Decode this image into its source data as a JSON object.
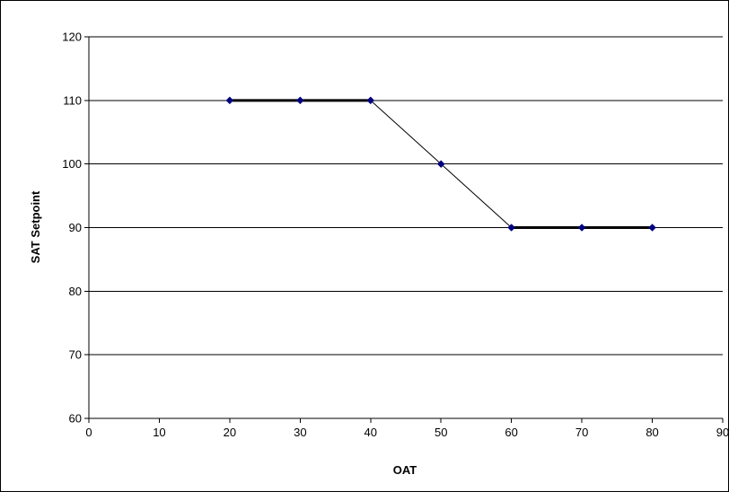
{
  "chart_data": {
    "type": "scatter",
    "title": "",
    "xlabel": "OAT",
    "ylabel": "SAT Setpoint",
    "xlim": [
      0,
      90
    ],
    "ylim": [
      60,
      120
    ],
    "xticks": [
      0,
      10,
      20,
      30,
      40,
      50,
      60,
      70,
      80,
      90
    ],
    "yticks": [
      60,
      70,
      80,
      90,
      100,
      110,
      120
    ],
    "grid": "horizontal",
    "legend": "none",
    "series": [
      {
        "x": [
          20,
          30,
          40,
          50,
          60,
          70,
          80
        ],
        "y": [
          110,
          110,
          110,
          100,
          90,
          90,
          90
        ],
        "marker": "diamond",
        "marker_color": "#000080",
        "line_color": "#000000",
        "emphasized_segments": [
          [
            0,
            2
          ],
          [
            4,
            6
          ]
        ]
      }
    ]
  }
}
